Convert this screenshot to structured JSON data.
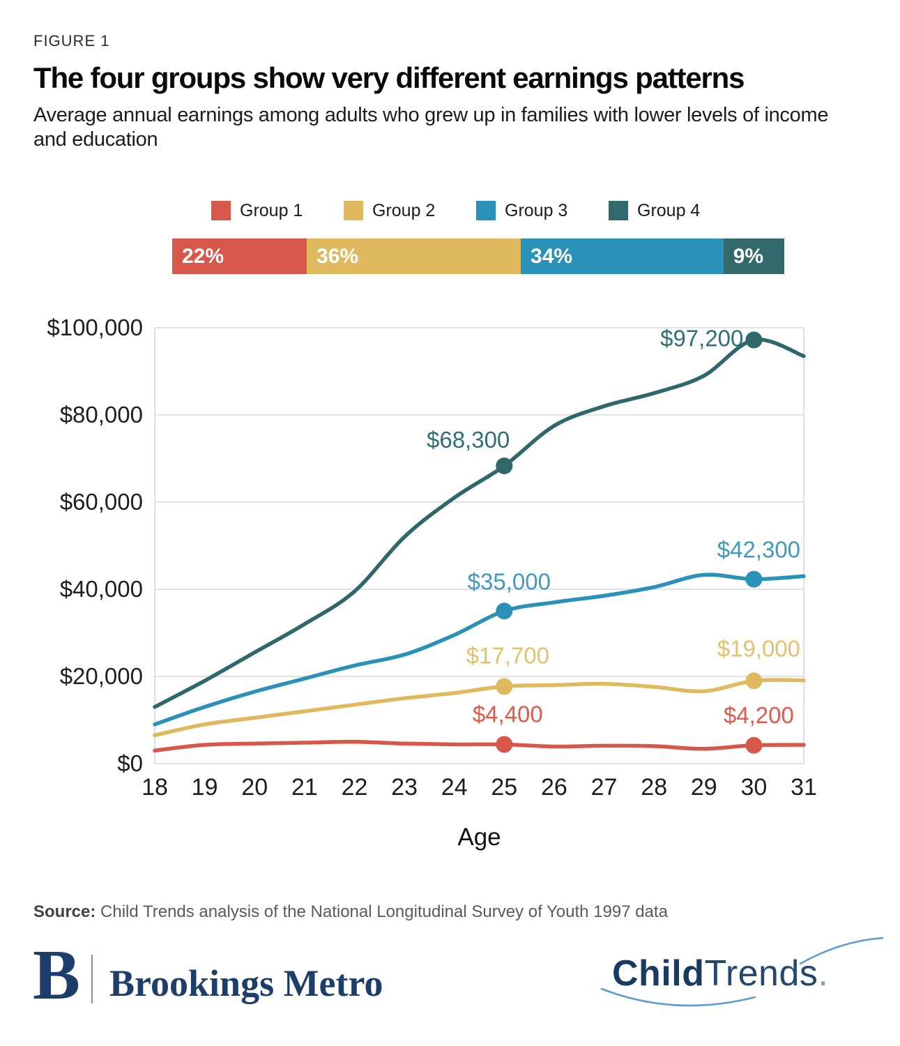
{
  "figure_label": "FIGURE 1",
  "title": "The four groups show very different earnings patterns",
  "subtitle": "Average annual earnings among adults who grew up in families with lower levels of income and education",
  "legend": {
    "items": [
      {
        "label": "Group 1",
        "color": "#D8574B"
      },
      {
        "label": "Group 2",
        "color": "#E0B95E"
      },
      {
        "label": "Group 3",
        "color": "#2A92B8"
      },
      {
        "label": "Group 4",
        "color": "#32696C"
      }
    ]
  },
  "distribution_bar": {
    "segments": [
      {
        "label": "22%",
        "percent": 22,
        "color": "#D8574B"
      },
      {
        "label": "36%",
        "percent": 36,
        "color": "#E0B95E"
      },
      {
        "label": "34%",
        "percent": 34,
        "color": "#2A92B8"
      },
      {
        "label": "9%",
        "percent": 9,
        "color": "#32696C"
      }
    ]
  },
  "chart_data": {
    "type": "line",
    "xlabel": "Age",
    "x": [
      18,
      19,
      20,
      21,
      22,
      23,
      24,
      25,
      26,
      27,
      28,
      29,
      30,
      31
    ],
    "ylim": [
      0,
      100000
    ],
    "grid": true,
    "y_ticks": {
      "values": [
        0,
        20000,
        40000,
        60000,
        80000,
        100000
      ],
      "labels": [
        "$0",
        "$20,000",
        "$40,000",
        "$60,000",
        "$80,000",
        "$100,000"
      ]
    },
    "series": [
      {
        "name": "Group 1",
        "color": "#D8574B",
        "label_color": "#DF5A4C",
        "values": [
          3000,
          4300,
          4600,
          4800,
          5000,
          4600,
          4400,
          4400,
          3900,
          4100,
          4000,
          3400,
          4200,
          4300
        ]
      },
      {
        "name": "Group 2",
        "color": "#E0B95E",
        "label_color": "#E5C169",
        "values": [
          6500,
          9000,
          10500,
          12000,
          13500,
          15000,
          16200,
          17700,
          18000,
          18300,
          17600,
          16600,
          19000,
          19100
        ]
      },
      {
        "name": "Group 3",
        "color": "#2A92B8",
        "label_color": "#4099BF",
        "values": [
          9000,
          13000,
          16500,
          19500,
          22500,
          25000,
          29500,
          35000,
          37000,
          38500,
          40500,
          43300,
          42300,
          43000
        ]
      },
      {
        "name": "Group 4",
        "color": "#2F676B",
        "label_color": "#2F6E77",
        "values": [
          13000,
          19000,
          25500,
          32000,
          39500,
          52000,
          61000,
          68300,
          77500,
          82000,
          85000,
          89000,
          97200,
          93500
        ]
      }
    ],
    "annotations": [
      {
        "series": "Group 4",
        "age": 25,
        "value": 68300,
        "label": "$68,300"
      },
      {
        "series": "Group 4",
        "age": 30,
        "value": 97200,
        "label": "$97,200"
      },
      {
        "series": "Group 3",
        "age": 25,
        "value": 35000,
        "label": "$35,000"
      },
      {
        "series": "Group 3",
        "age": 30,
        "value": 42300,
        "label": "$42,300"
      },
      {
        "series": "Group 2",
        "age": 25,
        "value": 17700,
        "label": "$17,700"
      },
      {
        "series": "Group 2",
        "age": 30,
        "value": 19000,
        "label": "$19,000"
      },
      {
        "series": "Group 1",
        "age": 25,
        "value": 4400,
        "label": "$4,400"
      },
      {
        "series": "Group 1",
        "age": 30,
        "value": 4200,
        "label": "$4,200"
      }
    ]
  },
  "source": {
    "prefix": "Source:",
    "text": " Child Trends analysis of the National Longitudinal Survey of Youth 1997 data"
  },
  "footer": {
    "brookings": {
      "mark": "B",
      "name": "Brookings Metro"
    },
    "childtrends": {
      "word1": "Child",
      "word2": "Trends",
      "period": "."
    }
  }
}
